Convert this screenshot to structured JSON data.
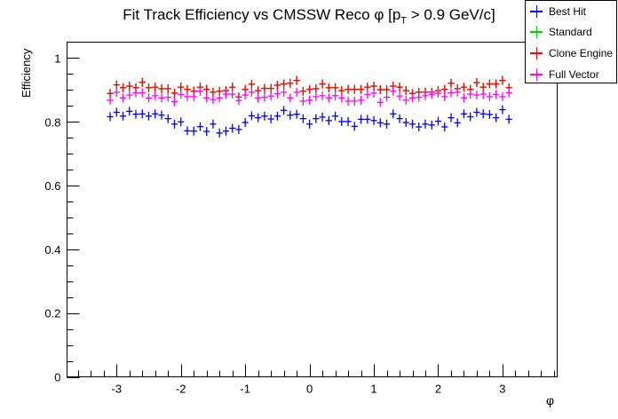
{
  "chart_data": {
    "type": "scatter",
    "title_main": "Fit Track Efficiency vs CMSSW Reco ",
    "title_phi": "φ",
    "title_bracket_open": " [p",
    "title_sub": "T",
    "title_rest": " > 0.9 GeV/c]",
    "xlabel": "φ",
    "ylabel": "Efficiency",
    "xlim": [
      -3.77,
      3.85
    ],
    "ylim": [
      0,
      1.05
    ],
    "x_ticks": [
      -3,
      -2,
      -1,
      0,
      1,
      2,
      3
    ],
    "x_tick_labels": [
      "-3",
      "-2",
      "-1",
      "0",
      "1",
      "2",
      "3"
    ],
    "y_ticks": [
      0,
      0.2,
      0.4,
      0.6,
      0.8,
      1
    ],
    "y_tick_labels": [
      "0",
      "0.2",
      "0.4",
      "0.6",
      "0.8",
      "1"
    ],
    "legend_position": "top-right",
    "x_start": -3.1,
    "x_step": 0.1,
    "series": [
      {
        "name": "Best Hit",
        "color": "#0000ff",
        "values": [
          0.816,
          0.83,
          0.818,
          0.833,
          0.824,
          0.825,
          0.818,
          0.825,
          0.821,
          0.81,
          0.793,
          0.8,
          0.772,
          0.771,
          0.785,
          0.77,
          0.793,
          0.765,
          0.771,
          0.78,
          0.776,
          0.798,
          0.819,
          0.813,
          0.818,
          0.809,
          0.818,
          0.836,
          0.821,
          0.824,
          0.81,
          0.793,
          0.81,
          0.815,
          0.804,
          0.818,
          0.801,
          0.801,
          0.786,
          0.808,
          0.808,
          0.804,
          0.797,
          0.793,
          0.825,
          0.81,
          0.798,
          0.793,
          0.784,
          0.793,
          0.79,
          0.802,
          0.784,
          0.813,
          0.797,
          0.825,
          0.816,
          0.83,
          0.825,
          0.823,
          0.813,
          0.838,
          0.808
        ]
      },
      {
        "name": "Standard",
        "color": "#00cc00",
        "values": [
          0.889,
          0.916,
          0.907,
          0.912,
          0.907,
          0.924,
          0.907,
          0.909,
          0.904,
          0.904,
          0.89,
          0.909,
          0.902,
          0.896,
          0.909,
          0.902,
          0.893,
          0.896,
          0.898,
          0.909,
          0.878,
          0.902,
          0.918,
          0.898,
          0.905,
          0.905,
          0.915,
          0.919,
          0.921,
          0.93,
          0.896,
          0.902,
          0.904,
          0.919,
          0.907,
          0.907,
          0.898,
          0.902,
          0.902,
          0.902,
          0.909,
          0.912,
          0.901,
          0.901,
          0.912,
          0.909,
          0.898,
          0.889,
          0.893,
          0.893,
          0.893,
          0.898,
          0.902,
          0.921,
          0.904,
          0.909,
          0.902,
          0.923,
          0.909,
          0.919,
          0.919,
          0.93,
          0.907
        ]
      },
      {
        "name": "Clone Engine",
        "color": "#ff0000",
        "values": [
          0.889,
          0.916,
          0.907,
          0.912,
          0.907,
          0.924,
          0.907,
          0.909,
          0.904,
          0.904,
          0.89,
          0.909,
          0.902,
          0.896,
          0.909,
          0.902,
          0.893,
          0.896,
          0.898,
          0.909,
          0.878,
          0.902,
          0.918,
          0.898,
          0.905,
          0.905,
          0.915,
          0.919,
          0.921,
          0.93,
          0.896,
          0.902,
          0.904,
          0.919,
          0.907,
          0.907,
          0.898,
          0.902,
          0.902,
          0.902,
          0.909,
          0.912,
          0.901,
          0.901,
          0.912,
          0.909,
          0.898,
          0.889,
          0.893,
          0.893,
          0.893,
          0.898,
          0.902,
          0.921,
          0.904,
          0.909,
          0.902,
          0.923,
          0.909,
          0.919,
          0.919,
          0.93,
          0.907
        ]
      },
      {
        "name": "Full Vector",
        "color": "#ff00ff",
        "values": [
          0.868,
          0.893,
          0.875,
          0.884,
          0.891,
          0.891,
          0.875,
          0.882,
          0.875,
          0.877,
          0.863,
          0.886,
          0.879,
          0.879,
          0.896,
          0.875,
          0.87,
          0.875,
          0.887,
          0.887,
          0.867,
          0.884,
          0.893,
          0.875,
          0.877,
          0.881,
          0.888,
          0.893,
          0.875,
          0.893,
          0.865,
          0.868,
          0.879,
          0.882,
          0.875,
          0.882,
          0.875,
          0.865,
          0.865,
          0.868,
          0.886,
          0.89,
          0.861,
          0.877,
          0.896,
          0.881,
          0.868,
          0.875,
          0.877,
          0.882,
          0.886,
          0.89,
          0.879,
          0.891,
          0.893,
          0.875,
          0.887,
          0.884,
          0.887,
          0.879,
          0.886,
          0.879,
          0.891
        ]
      }
    ]
  }
}
